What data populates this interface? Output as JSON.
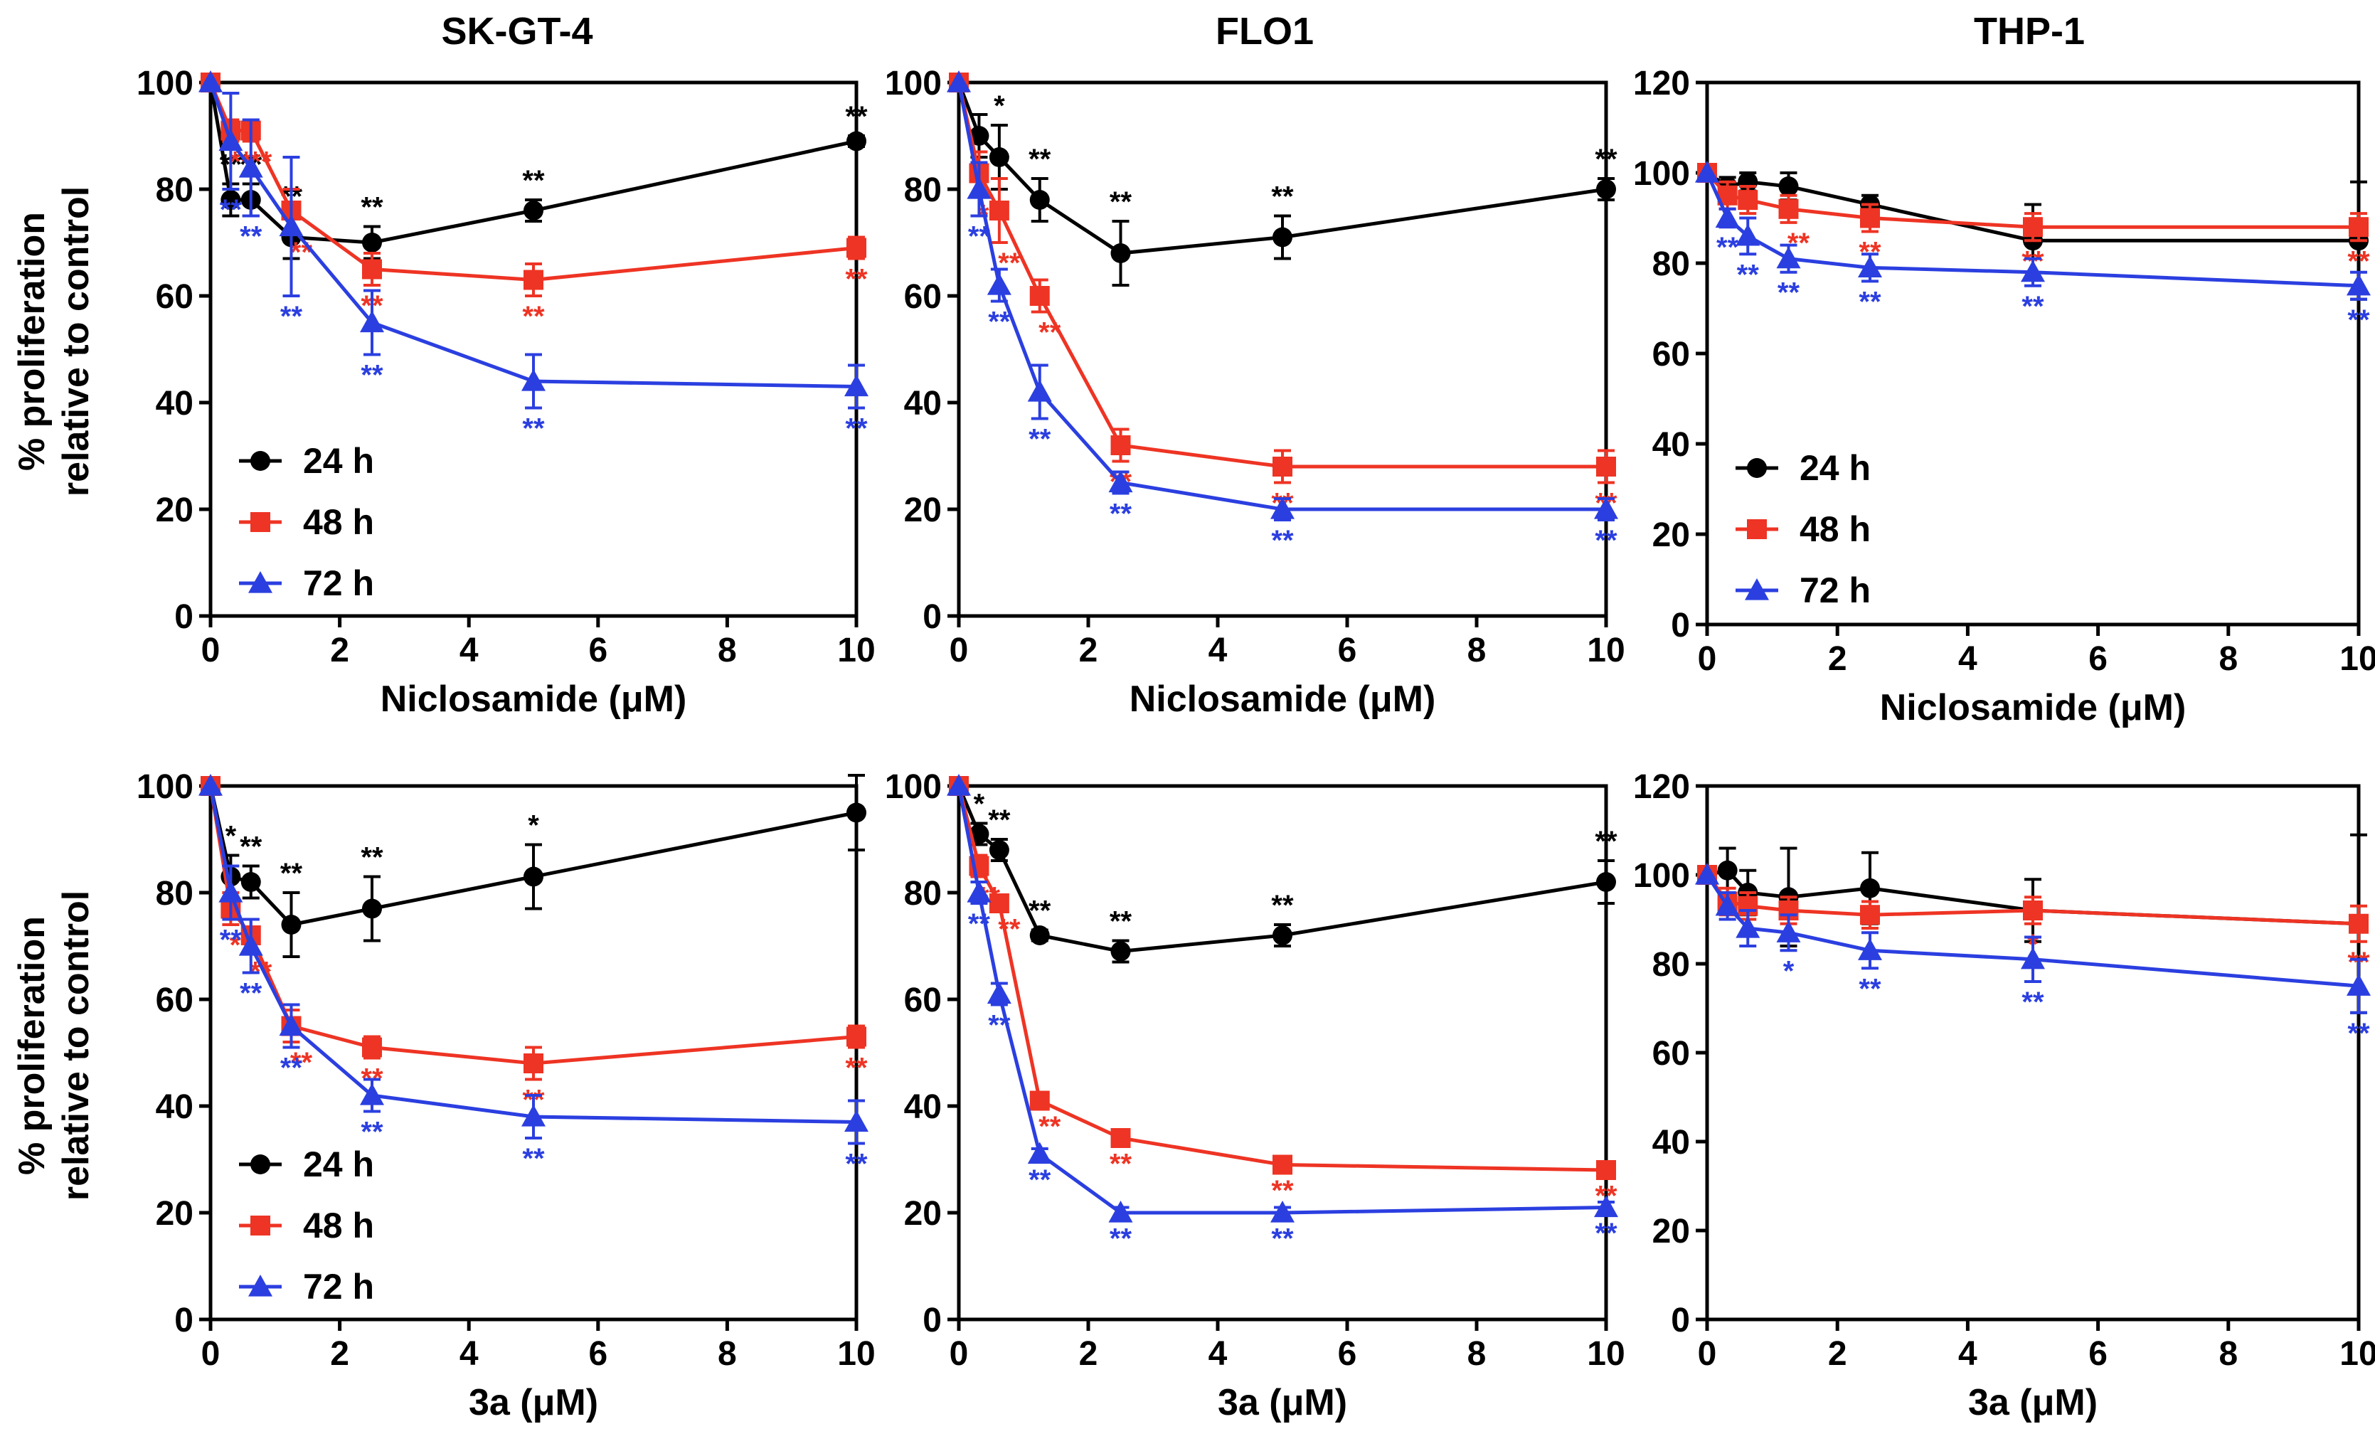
{
  "figure": {
    "column_titles": [
      "SK-GT-4",
      "FLO1",
      "THP-1"
    ],
    "ylabel_line1": "% proliferation",
    "ylabel_line2": "relative to control",
    "colors": {
      "24 h": "#000000",
      "48 h": "#ee3424",
      "72 h": "#2b3fe0"
    }
  },
  "chart_data": [
    {
      "type": "line",
      "id": "skgt4-niclosamide",
      "title": "SK-GT-4",
      "xlabel": "Niclosamide (μM)",
      "xlim": [
        0,
        10
      ],
      "xticks": [
        0,
        2,
        4,
        6,
        8,
        10
      ],
      "ylim": [
        0,
        100
      ],
      "yticks": [
        0,
        20,
        40,
        60,
        80,
        100
      ],
      "x": [
        0,
        0.3125,
        0.625,
        1.25,
        2.5,
        5,
        10
      ],
      "legend": "lower-left",
      "series": [
        {
          "name": "24 h",
          "marker": "circle",
          "values": [
            100,
            78,
            78,
            71,
            70,
            76,
            89
          ],
          "errors": [
            0,
            3,
            3,
            4,
            3,
            2,
            1
          ],
          "sig": [
            "",
            "**",
            "**",
            "**",
            "**",
            "**",
            "**"
          ]
        },
        {
          "name": "48 h",
          "marker": "square",
          "values": [
            100,
            91,
            91,
            76,
            65,
            63,
            69
          ],
          "errors": [
            0,
            2,
            2,
            4,
            3,
            3,
            2
          ],
          "sig": [
            "",
            "**",
            "**",
            "**",
            "**",
            "**",
            "**"
          ]
        },
        {
          "name": "72 h",
          "marker": "triangle",
          "values": [
            100,
            89,
            84,
            73,
            55,
            44,
            43
          ],
          "errors": [
            0,
            9,
            9,
            13,
            6,
            5,
            4
          ],
          "sig": [
            "",
            "**",
            "**",
            "**",
            "**",
            "**",
            "**"
          ]
        }
      ]
    },
    {
      "type": "line",
      "id": "flo1-niclosamide",
      "title": "FLO1",
      "xlabel": "Niclosamide (μM)",
      "xlim": [
        0,
        10
      ],
      "xticks": [
        0,
        2,
        4,
        6,
        8,
        10
      ],
      "ylim": [
        0,
        100
      ],
      "yticks": [
        0,
        20,
        40,
        60,
        80,
        100
      ],
      "x": [
        0,
        0.3125,
        0.625,
        1.25,
        2.5,
        5,
        10
      ],
      "legend": "none",
      "series": [
        {
          "name": "24 h",
          "marker": "circle",
          "values": [
            100,
            90,
            86,
            78,
            68,
            71,
            80
          ],
          "errors": [
            0,
            4,
            6,
            4,
            6,
            4,
            2
          ],
          "sig": [
            "",
            "",
            "*",
            "**",
            "**",
            "**",
            "**"
          ]
        },
        {
          "name": "48 h",
          "marker": "square",
          "values": [
            100,
            83,
            76,
            60,
            32,
            28,
            28
          ],
          "errors": [
            0,
            4,
            6,
            3,
            3,
            3,
            3
          ],
          "sig": [
            "",
            "**",
            "**",
            "**",
            "**",
            "**",
            "**"
          ]
        },
        {
          "name": "72 h",
          "marker": "triangle",
          "values": [
            100,
            80,
            62,
            42,
            25,
            20,
            20
          ],
          "errors": [
            0,
            5,
            3,
            5,
            2,
            2,
            2
          ],
          "sig": [
            "",
            "**",
            "**",
            "**",
            "**",
            "**",
            "**"
          ]
        }
      ]
    },
    {
      "type": "line",
      "id": "thp1-niclosamide",
      "title": "THP-1",
      "xlabel": "Niclosamide (μM)",
      "xlim": [
        0,
        10
      ],
      "xticks": [
        0,
        2,
        4,
        6,
        8,
        10
      ],
      "ylim": [
        0,
        120
      ],
      "yticks": [
        0,
        20,
        40,
        60,
        80,
        100,
        120
      ],
      "x": [
        0,
        0.3125,
        0.625,
        1.25,
        2.5,
        5,
        10
      ],
      "legend": "center-left",
      "series": [
        {
          "name": "24 h",
          "marker": "circle",
          "values": [
            100,
            97,
            98,
            97,
            93,
            85,
            85
          ],
          "errors": [
            0,
            2,
            2,
            3,
            2,
            8,
            13
          ],
          "sig": [
            "",
            "",
            "",
            "",
            "",
            "",
            ""
          ]
        },
        {
          "name": "48 h",
          "marker": "square",
          "values": [
            100,
            95,
            94,
            92,
            90,
            88,
            88
          ],
          "errors": [
            0,
            3,
            3,
            3,
            3,
            3,
            3
          ],
          "sig": [
            "",
            "",
            "",
            "**",
            "**",
            "**",
            "**"
          ]
        },
        {
          "name": "72 h",
          "marker": "triangle",
          "values": [
            100,
            90,
            86,
            81,
            79,
            78,
            75
          ],
          "errors": [
            0,
            2,
            4,
            3,
            3,
            3,
            3
          ],
          "sig": [
            "",
            "**",
            "**",
            "**",
            "**",
            "**",
            "**"
          ]
        }
      ]
    },
    {
      "type": "line",
      "id": "skgt4-3a",
      "title": "SK-GT-4",
      "xlabel": "3a (μM)",
      "xlim": [
        0,
        10
      ],
      "xticks": [
        0,
        2,
        4,
        6,
        8,
        10
      ],
      "ylim": [
        0,
        100
      ],
      "yticks": [
        0,
        20,
        40,
        60,
        80,
        100
      ],
      "x": [
        0,
        0.3125,
        0.625,
        1.25,
        2.5,
        5,
        10
      ],
      "legend": "lower-left",
      "series": [
        {
          "name": "24 h",
          "marker": "circle",
          "values": [
            100,
            83,
            82,
            74,
            77,
            83,
            95
          ],
          "errors": [
            0,
            4,
            3,
            6,
            6,
            6,
            7
          ],
          "sig": [
            "",
            "*",
            "**",
            "**",
            "**",
            "*",
            ""
          ]
        },
        {
          "name": "48 h",
          "marker": "square",
          "values": [
            100,
            77,
            72,
            55,
            51,
            48,
            53
          ],
          "errors": [
            0,
            3,
            3,
            3,
            2,
            3,
            2
          ],
          "sig": [
            "",
            "**",
            "**",
            "**",
            "**",
            "**",
            "**"
          ]
        },
        {
          "name": "72 h",
          "marker": "triangle",
          "values": [
            100,
            80,
            70,
            55,
            42,
            38,
            37
          ],
          "errors": [
            0,
            5,
            5,
            4,
            3,
            4,
            4
          ],
          "sig": [
            "",
            "**",
            "**",
            "**",
            "**",
            "**",
            "**"
          ]
        }
      ]
    },
    {
      "type": "line",
      "id": "flo1-3a",
      "title": "FLO1",
      "xlabel": "3a (μM)",
      "xlim": [
        0,
        10
      ],
      "xticks": [
        0,
        2,
        4,
        6,
        8,
        10
      ],
      "ylim": [
        0,
        100
      ],
      "yticks": [
        0,
        20,
        40,
        60,
        80,
        100
      ],
      "x": [
        0,
        0.3125,
        0.625,
        1.25,
        2.5,
        5,
        10
      ],
      "legend": "none",
      "series": [
        {
          "name": "24 h",
          "marker": "circle",
          "values": [
            100,
            91,
            88,
            72,
            69,
            72,
            82
          ],
          "errors": [
            0,
            2,
            2,
            1,
            2,
            2,
            4
          ],
          "sig": [
            "",
            "*",
            "**",
            "**",
            "**",
            "**",
            "**"
          ]
        },
        {
          "name": "48 h",
          "marker": "square",
          "values": [
            100,
            85,
            78,
            41,
            34,
            29,
            28
          ],
          "errors": [
            0,
            2,
            1,
            1,
            1,
            1,
            1
          ],
          "sig": [
            "",
            "**",
            "**",
            "**",
            "**",
            "**",
            "**"
          ]
        },
        {
          "name": "72 h",
          "marker": "triangle",
          "values": [
            100,
            80,
            61,
            31,
            20,
            20,
            21
          ],
          "errors": [
            0,
            2,
            2,
            1,
            1,
            1,
            1
          ],
          "sig": [
            "",
            "**",
            "**",
            "**",
            "**",
            "**",
            "**"
          ]
        }
      ]
    },
    {
      "type": "line",
      "id": "thp1-3a",
      "title": "THP-1",
      "xlabel": "3a (μM)",
      "xlim": [
        0,
        10
      ],
      "xticks": [
        0,
        2,
        4,
        6,
        8,
        10
      ],
      "ylim": [
        0,
        120
      ],
      "yticks": [
        0,
        20,
        40,
        60,
        80,
        100,
        120
      ],
      "x": [
        0,
        0.3125,
        0.625,
        1.25,
        2.5,
        5,
        10
      ],
      "legend": "none",
      "series": [
        {
          "name": "24 h",
          "marker": "circle",
          "values": [
            100,
            101,
            96,
            95,
            97,
            92,
            89
          ],
          "errors": [
            0,
            5,
            5,
            11,
            8,
            7,
            20
          ],
          "sig": [
            "",
            "",
            "",
            "",
            "",
            "",
            ""
          ]
        },
        {
          "name": "48 h",
          "marker": "square",
          "values": [
            100,
            94,
            93,
            92,
            91,
            92,
            89
          ],
          "errors": [
            0,
            3,
            3,
            3,
            3,
            3,
            4
          ],
          "sig": [
            "",
            "",
            "",
            "",
            "",
            "*",
            "**"
          ]
        },
        {
          "name": "72 h",
          "marker": "triangle",
          "values": [
            100,
            93,
            88,
            87,
            83,
            81,
            75
          ],
          "errors": [
            0,
            3,
            4,
            4,
            4,
            5,
            6
          ],
          "sig": [
            "",
            "",
            "",
            "*",
            "**",
            "**",
            "**"
          ]
        }
      ]
    }
  ]
}
